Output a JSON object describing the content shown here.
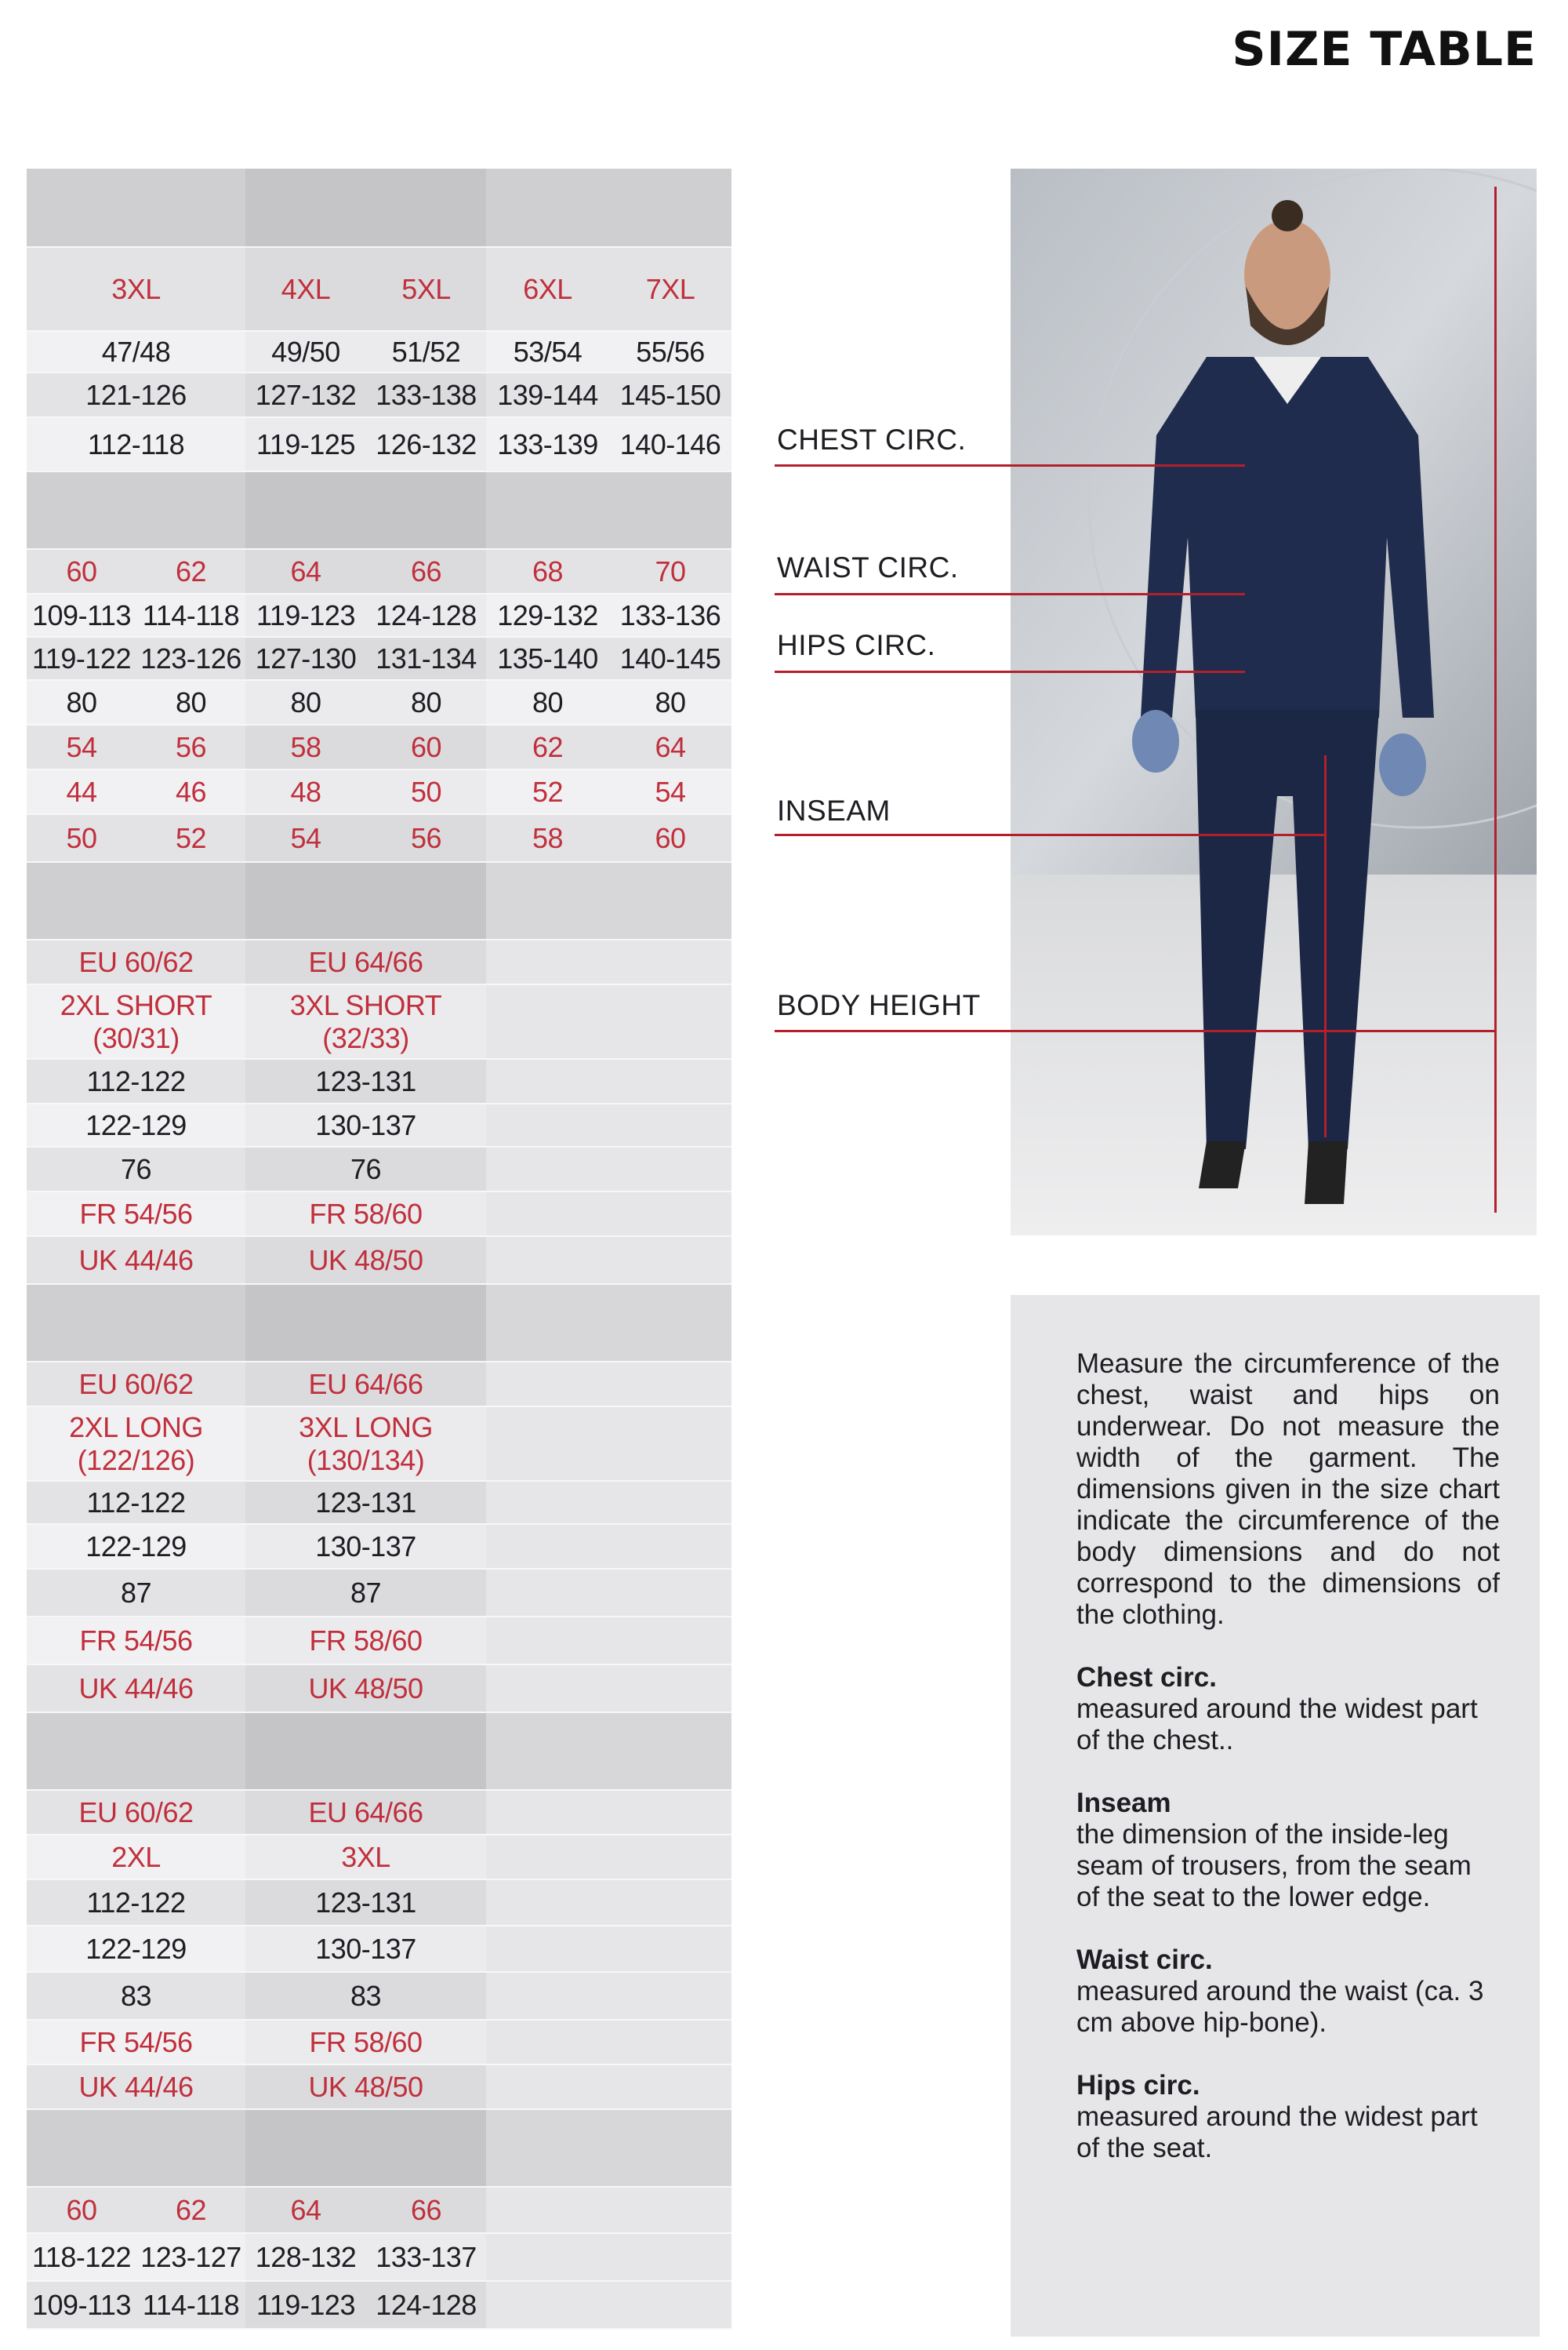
{
  "title": "SIZE TABLE",
  "colors": {
    "accent_red": "#c0303c",
    "line_red": "#b3202c",
    "header_gray": "#cfcfd2",
    "panel_gray": "#e6e6e8"
  },
  "table": {
    "sections": [
      {
        "rows": [
          {
            "cells": []
          },
          {
            "cells": [
              {
                "t": "3XL",
                "span": 2,
                "red": true
              },
              {
                "t": "4XL",
                "span": 1,
                "red": true
              },
              {
                "t": "5XL",
                "span": 1,
                "red": true
              },
              {
                "t": "6XL",
                "span": 1,
                "red": true
              },
              {
                "t": "7XL",
                "span": 1,
                "red": true
              }
            ]
          },
          {
            "cells": [
              {
                "t": "47/48",
                "span": 2
              },
              {
                "t": "49/50",
                "span": 1
              },
              {
                "t": "51/52",
                "span": 1
              },
              {
                "t": "53/54",
                "span": 1
              },
              {
                "t": "55/56",
                "span": 1
              }
            ]
          },
          {
            "cells": [
              {
                "t": "121-126",
                "span": 2
              },
              {
                "t": "127-132",
                "span": 1
              },
              {
                "t": "133-138",
                "span": 1
              },
              {
                "t": "139-144",
                "span": 1
              },
              {
                "t": "145-150",
                "span": 1
              }
            ]
          },
          {
            "cells": [
              {
                "t": "112-118",
                "span": 2
              },
              {
                "t": "119-125",
                "span": 1
              },
              {
                "t": "126-132",
                "span": 1
              },
              {
                "t": "133-139",
                "span": 1
              },
              {
                "t": "140-146",
                "span": 1
              }
            ]
          }
        ]
      },
      {
        "rows": [
          {
            "cells": []
          },
          {
            "cells": [
              {
                "t": "60",
                "red": true
              },
              {
                "t": "62",
                "red": true
              },
              {
                "t": "64",
                "red": true
              },
              {
                "t": "66",
                "red": true
              },
              {
                "t": "68",
                "red": true
              },
              {
                "t": "70",
                "red": true
              }
            ]
          },
          {
            "cells": [
              {
                "t": "109-113"
              },
              {
                "t": "114-118"
              },
              {
                "t": "119-123"
              },
              {
                "t": "124-128"
              },
              {
                "t": "129-132"
              },
              {
                "t": "133-136"
              }
            ]
          },
          {
            "cells": [
              {
                "t": "119-122"
              },
              {
                "t": "123-126"
              },
              {
                "t": "127-130"
              },
              {
                "t": "131-134"
              },
              {
                "t": "135-140"
              },
              {
                "t": "140-145"
              }
            ]
          },
          {
            "cells": [
              {
                "t": "80"
              },
              {
                "t": "80"
              },
              {
                "t": "80"
              },
              {
                "t": "80"
              },
              {
                "t": "80"
              },
              {
                "t": "80"
              }
            ]
          },
          {
            "cells": [
              {
                "t": "54",
                "red": true
              },
              {
                "t": "56",
                "red": true
              },
              {
                "t": "58",
                "red": true
              },
              {
                "t": "60",
                "red": true
              },
              {
                "t": "62",
                "red": true
              },
              {
                "t": "64",
                "red": true
              }
            ]
          },
          {
            "cells": [
              {
                "t": "44",
                "red": true
              },
              {
                "t": "46",
                "red": true
              },
              {
                "t": "48",
                "red": true
              },
              {
                "t": "50",
                "red": true
              },
              {
                "t": "52",
                "red": true
              },
              {
                "t": "54",
                "red": true
              }
            ]
          },
          {
            "cells": [
              {
                "t": "50",
                "red": true
              },
              {
                "t": "52",
                "red": true
              },
              {
                "t": "54",
                "red": true
              },
              {
                "t": "56",
                "red": true
              },
              {
                "t": "58",
                "red": true
              },
              {
                "t": "60",
                "red": true
              }
            ]
          }
        ]
      },
      {
        "rows": [
          {
            "cells": []
          },
          {
            "cells": [
              {
                "t": "EU 60/62",
                "span": 2,
                "red": true
              },
              {
                "t": "EU 64/66",
                "span": 2,
                "red": true
              }
            ]
          },
          {
            "cells": [
              {
                "t": "2XL SHORT\n(30/31)",
                "span": 2,
                "red": true
              },
              {
                "t": "3XL SHORT\n(32/33)",
                "span": 2,
                "red": true
              }
            ]
          },
          {
            "cells": [
              {
                "t": "112-122",
                "span": 2
              },
              {
                "t": "123-131",
                "span": 2
              }
            ]
          },
          {
            "cells": [
              {
                "t": "122-129",
                "span": 2
              },
              {
                "t": "130-137",
                "span": 2
              }
            ]
          },
          {
            "cells": [
              {
                "t": "76",
                "span": 2
              },
              {
                "t": "76",
                "span": 2
              }
            ]
          },
          {
            "cells": [
              {
                "t": "FR 54/56",
                "span": 2,
                "red": true
              },
              {
                "t": "FR 58/60",
                "span": 2,
                "red": true
              }
            ]
          },
          {
            "cells": [
              {
                "t": "UK 44/46",
                "span": 2,
                "red": true
              },
              {
                "t": "UK 48/50",
                "span": 2,
                "red": true
              }
            ]
          }
        ]
      },
      {
        "rows": [
          {
            "cells": []
          },
          {
            "cells": [
              {
                "t": "EU 60/62",
                "span": 2,
                "red": true
              },
              {
                "t": "EU 64/66",
                "span": 2,
                "red": true
              }
            ]
          },
          {
            "cells": [
              {
                "t": "2XL LONG\n(122/126)",
                "span": 2,
                "red": true
              },
              {
                "t": "3XL LONG\n(130/134)",
                "span": 2,
                "red": true
              }
            ]
          },
          {
            "cells": [
              {
                "t": "112-122",
                "span": 2
              },
              {
                "t": "123-131",
                "span": 2
              }
            ]
          },
          {
            "cells": [
              {
                "t": "122-129",
                "span": 2
              },
              {
                "t": "130-137",
                "span": 2
              }
            ]
          },
          {
            "cells": [
              {
                "t": "87",
                "span": 2
              },
              {
                "t": "87",
                "span": 2
              }
            ]
          },
          {
            "cells": [
              {
                "t": "FR 54/56",
                "span": 2,
                "red": true
              },
              {
                "t": "FR 58/60",
                "span": 2,
                "red": true
              }
            ]
          },
          {
            "cells": [
              {
                "t": "UK 44/46",
                "span": 2,
                "red": true
              },
              {
                "t": "UK 48/50",
                "span": 2,
                "red": true
              }
            ]
          }
        ]
      },
      {
        "rows": [
          {
            "cells": []
          },
          {
            "cells": [
              {
                "t": "EU 60/62",
                "span": 2,
                "red": true
              },
              {
                "t": "EU 64/66",
                "span": 2,
                "red": true
              }
            ]
          },
          {
            "cells": [
              {
                "t": "2XL",
                "span": 2,
                "red": true
              },
              {
                "t": "3XL",
                "span": 2,
                "red": true
              }
            ]
          },
          {
            "cells": [
              {
                "t": "112-122",
                "span": 2
              },
              {
                "t": "123-131",
                "span": 2
              }
            ]
          },
          {
            "cells": [
              {
                "t": "122-129",
                "span": 2
              },
              {
                "t": "130-137",
                "span": 2
              }
            ]
          },
          {
            "cells": [
              {
                "t": "83",
                "span": 2
              },
              {
                "t": "83",
                "span": 2
              }
            ]
          },
          {
            "cells": [
              {
                "t": "FR 54/56",
                "span": 2,
                "red": true
              },
              {
                "t": "FR 58/60",
                "span": 2,
                "red": true
              }
            ]
          },
          {
            "cells": [
              {
                "t": "UK 44/46",
                "span": 2,
                "red": true
              },
              {
                "t": "UK 48/50",
                "span": 2,
                "red": true
              }
            ]
          }
        ]
      },
      {
        "rows": [
          {
            "cells": []
          },
          {
            "cells": [
              {
                "t": "60",
                "red": true
              },
              {
                "t": "62",
                "red": true
              },
              {
                "t": "64",
                "red": true
              },
              {
                "t": "66",
                "red": true
              }
            ]
          },
          {
            "cells": [
              {
                "t": "118-122"
              },
              {
                "t": "123-127"
              },
              {
                "t": "128-132"
              },
              {
                "t": "133-137"
              }
            ]
          },
          {
            "cells": [
              {
                "t": "109-113"
              },
              {
                "t": "114-118"
              },
              {
                "t": "119-123"
              },
              {
                "t": "124-128"
              }
            ]
          }
        ]
      }
    ]
  },
  "measure_labels": {
    "chest": "CHEST CIRC.",
    "waist": "WAIST CIRC.",
    "hips": "HIPS CIRC.",
    "inseam": "INSEAM",
    "body_height": "BODY HEIGHT"
  },
  "info": {
    "intro": "Measure the circumference of the chest, waist and hips on underwear. Do not measure the width of the garment. The dimensions given in the size chart indicate the circumference of the body dimensions and do not correspond to the dimensions of the clothing.",
    "items": [
      {
        "term": "Chest circ.",
        "desc": "measured around the widest part of the chest.."
      },
      {
        "term": "Inseam",
        "desc": "the dimension of the inside-leg seam of trousers, from the seam of the seat to the lower edge."
      },
      {
        "term": "Waist circ.",
        "desc": "measured around the waist (ca. 3 cm above hip-bone)."
      },
      {
        "term": "Hips circ.",
        "desc": "measured around the widest part of the seat."
      }
    ]
  }
}
